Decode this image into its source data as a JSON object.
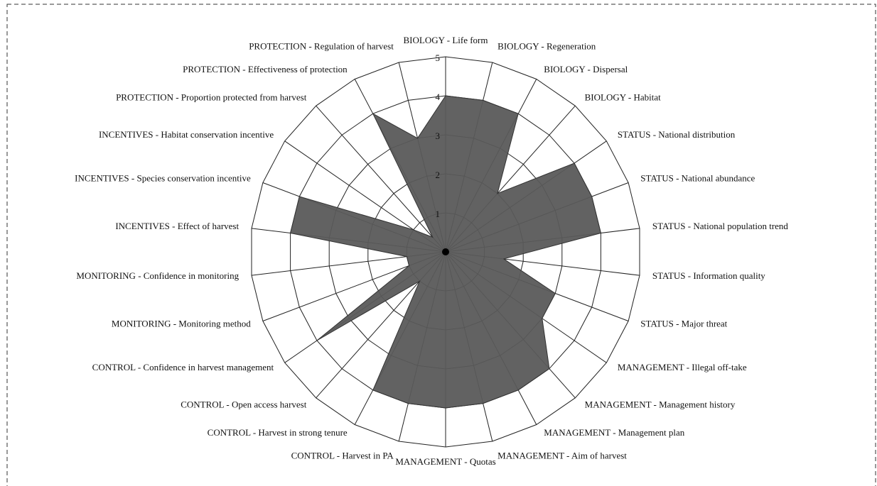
{
  "chart_data": {
    "type": "radar",
    "categories": [
      "BIOLOGY - Life form",
      "BIOLOGY - Regeneration",
      "BIOLOGY - Dispersal",
      "BIOLOGY - Habitat",
      "STATUS - National distribution",
      "STATUS - National abundance",
      "STATUS - National population trend",
      "STATUS - Information quality",
      "STATUS - Major threat",
      "MANAGEMENT - Illegal off-take",
      "MANAGEMENT - Management history",
      "MANAGEMENT - Management plan",
      "MANAGEMENT - Aim of harvest",
      "MANAGEMENT - Quotas",
      "CONTROL - Harvest in PA",
      "CONTROL - Harvest in strong tenure",
      "CONTROL - Open access harvest",
      "CONTROL - Confidence in harvest management",
      "MONITORING - Monitoring method",
      "MONITORING - Confidence in monitoring",
      "INCENTIVES - Effect of harvest",
      "INCENTIVES - Species conservation incentive",
      "INCENTIVES - Habitat conservation incentive",
      "PROTECTION - Proportion protected from harvest",
      "PROTECTION - Effectiveness of protection",
      "PROTECTION - Regulation of harvest"
    ],
    "values": [
      4,
      4,
      4,
      2,
      4,
      4,
      4,
      1.5,
      3,
      3,
      4,
      4,
      4,
      4,
      4,
      4,
      1,
      4,
      1,
      1,
      4,
      4,
      1,
      0.5,
      4,
      3
    ],
    "color": "#5a5a5a",
    "rlim": [
      0,
      5
    ],
    "rticks": [
      1,
      2,
      3,
      4,
      5
    ]
  }
}
